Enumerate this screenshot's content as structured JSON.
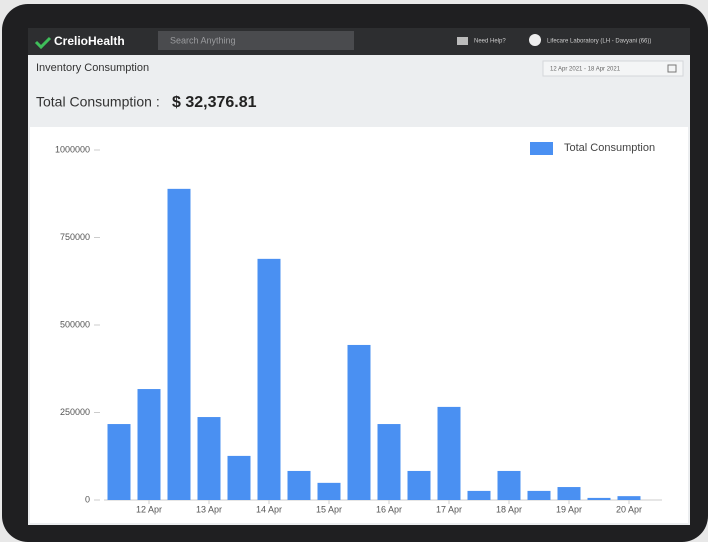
{
  "header": {
    "logo": "CrelioHealth",
    "search_placeholder": "Search Anything",
    "help": "Need Help?",
    "user": "Lifecare Laboratory (LH - Davyani (66))"
  },
  "page": {
    "title": "Inventory Consumption",
    "date_range": "12 Apr 2021 - 18 Apr 2021",
    "total_label": "Total Consumption :",
    "total_value": "$ 32,376.81"
  },
  "chart_data": {
    "type": "bar",
    "categories": [
      null,
      "12 Apr",
      null,
      "13 Apr",
      null,
      "14 Apr",
      null,
      "15 Apr",
      null,
      "16 Apr",
      null,
      "17 Apr",
      null,
      "18 Apr",
      null,
      "19 Apr",
      null,
      "20 Apr"
    ],
    "series": [
      {
        "name": "Total Consumption",
        "color": "#4a90f2",
        "values": [
          217000,
          317000,
          889000,
          237000,
          126000,
          689000,
          83000,
          49000,
          443000,
          217000,
          83000,
          266000,
          26000,
          83000,
          26000,
          37000,
          6000,
          11000
        ]
      }
    ],
    "ylim": [
      0,
      1000000
    ],
    "yticks": [
      0,
      250000,
      500000,
      750000,
      1000000
    ],
    "grid": false,
    "legend": "upper right"
  }
}
